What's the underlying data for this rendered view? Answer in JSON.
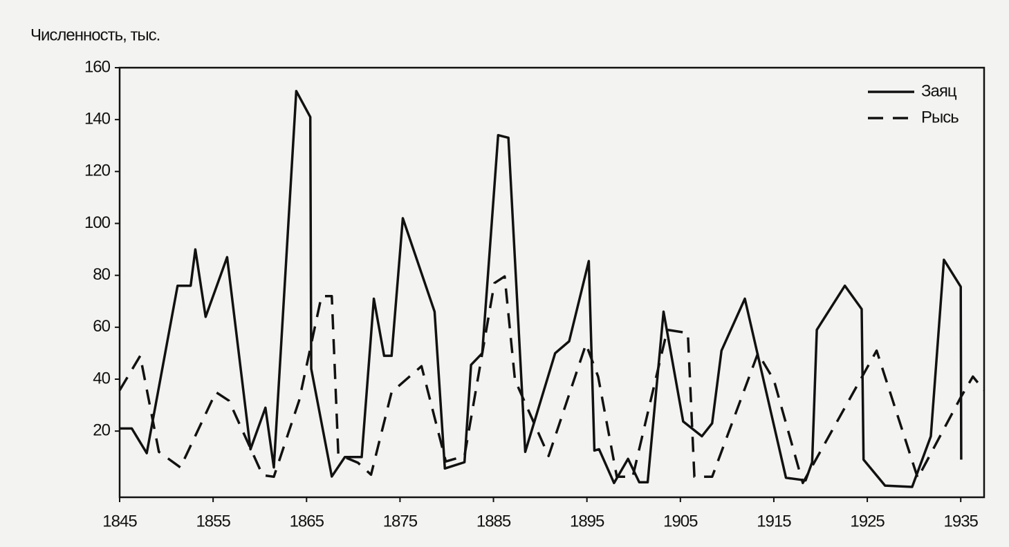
{
  "chart_data": {
    "type": "line",
    "y_label": "Численность, тыс.",
    "xlim": [
      1845,
      1937.5
    ],
    "ylim": [
      -5.5,
      160
    ],
    "xticks": [
      1845,
      1855,
      1865,
      1875,
      1885,
      1895,
      1905,
      1915,
      1925,
      1935
    ],
    "yticks": [
      20,
      40,
      60,
      80,
      100,
      120,
      140,
      160
    ],
    "legend": "top-right",
    "series": [
      {
        "name": "Заяц",
        "color": "#111111",
        "style": "solid",
        "x": [
          1845,
          1846.3,
          1847.9,
          1851.2,
          1852.6,
          1853.1,
          1854.2,
          1856.5,
          1859,
          1860.6,
          1861.5,
          1863.9,
          1865.4,
          1865.5,
          1867.7,
          1869.1,
          1870.9,
          1872.2,
          1873.3,
          1874.1,
          1875.3,
          1878.7,
          1879.8,
          1881.9,
          1882.6,
          1883.8,
          1885.5,
          1886.6,
          1888.4,
          1891.6,
          1893.1,
          1895.2,
          1895.8,
          1896.3,
          1897.9,
          1899.4,
          1900.6,
          1901.5,
          1903.2,
          1905.3,
          1907.3,
          1908.4,
          1909.4,
          1911.9,
          1916.3,
          1918.4,
          1919.1,
          1919.6,
          1922.6,
          1924.4,
          1924.6,
          1926.9,
          1929.8,
          1931.8,
          1933.2,
          1935,
          1935.05
        ],
        "values": [
          21,
          21,
          11.5,
          76,
          76,
          90,
          64,
          87,
          13,
          29,
          6,
          151,
          141,
          44,
          2.5,
          10,
          10,
          71,
          49,
          49,
          102,
          66,
          5.6,
          8,
          45.5,
          50,
          134,
          133,
          12,
          50,
          54.6,
          85.5,
          12.5,
          13,
          0,
          9.3,
          0.3,
          0.3,
          66,
          23.7,
          18,
          23,
          51,
          71,
          2,
          1,
          8,
          59,
          76,
          67,
          9,
          -1,
          -1.5,
          18,
          86,
          75.6,
          9
        ]
      },
      {
        "name": "Рысь",
        "color": "#111111",
        "style": "dashed",
        "x": [
          1845,
          1847.2,
          1849.2,
          1851.5,
          1852.5,
          1855.3,
          1856.7,
          1860.3,
          1861.5,
          1864.2,
          1866.6,
          1867.7,
          1868.4,
          1870.5,
          1871.9,
          1874.1,
          1877.3,
          1879.9,
          1881.9,
          1885.1,
          1886.2,
          1887.3,
          1890.9,
          1894.9,
          1896.2,
          1898.2,
          1899.9,
          1903.6,
          1905.8,
          1906.5,
          1908.4,
          1913.3,
          1915,
          1918.1,
          1921.2,
          1926,
          1930.4,
          1935,
          1936.3,
          1937.5
        ],
        "values": [
          35.7,
          49,
          12,
          6,
          13.6,
          35,
          31.7,
          3,
          2.4,
          31.7,
          72,
          72,
          11,
          7.8,
          3.2,
          35,
          45,
          8.3,
          10.4,
          77,
          79.6,
          39.7,
          10.4,
          53.5,
          41,
          2.4,
          2.4,
          59,
          57.8,
          2.4,
          2.4,
          50,
          39.7,
          0,
          20,
          51,
          1.9,
          33,
          41,
          35.7
        ]
      }
    ]
  }
}
